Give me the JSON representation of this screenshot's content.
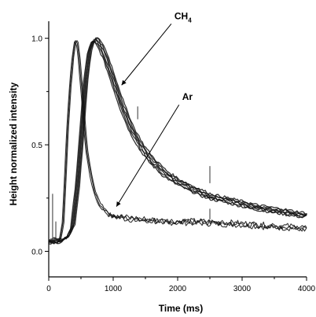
{
  "chart_data": {
    "type": "line",
    "xlabel": "Time (ms)",
    "ylabel": "Height normalized intensity",
    "x_ticks": [
      0,
      1000,
      2000,
      3000,
      4000
    ],
    "y_ticks": [
      0.0,
      0.5,
      1.0
    ],
    "y_tick_labels": [
      "0.0",
      "0.5",
      "1.0"
    ],
    "xlim": [
      0,
      4000
    ],
    "ylim": [
      -0.12,
      1.08
    ],
    "grid": false,
    "annotations": [
      {
        "label": "CH",
        "subscript": "4",
        "text_x": 1950,
        "text_y": 1.09,
        "arrow_to": [
          1130,
          0.78
        ]
      },
      {
        "label": "Ar",
        "text_x": 2070,
        "text_y": 0.71,
        "arrow_to": [
          1050,
          0.21
        ]
      }
    ],
    "series": [
      {
        "x": [
          0,
          180,
          230,
          270,
          300,
          340,
          380,
          420,
          450,
          480,
          520,
          560,
          600,
          660,
          720,
          800,
          900,
          1000,
          1150,
          1300,
          1500,
          1700,
          2000,
          2300,
          2600,
          3000,
          3400,
          3800,
          4000
        ],
        "y": [
          0.05,
          0.05,
          0.14,
          0.38,
          0.58,
          0.77,
          0.91,
          0.99,
          0.98,
          0.9,
          0.76,
          0.6,
          0.47,
          0.36,
          0.28,
          0.22,
          0.19,
          0.17,
          0.16,
          0.155,
          0.15,
          0.145,
          0.14,
          0.14,
          0.135,
          0.13,
          0.12,
          0.115,
          0.11
        ]
      },
      {
        "x": [
          0,
          200,
          300,
          380,
          450,
          520,
          580,
          640,
          700,
          760,
          820,
          880,
          950,
          1050,
          1150,
          1300,
          1450,
          1600,
          1800,
          2000,
          2200,
          2500,
          2800,
          3200,
          3600,
          4000
        ],
        "y": [
          0.05,
          0.05,
          0.07,
          0.12,
          0.3,
          0.56,
          0.8,
          0.94,
          0.99,
          0.99,
          0.96,
          0.92,
          0.86,
          0.77,
          0.68,
          0.57,
          0.49,
          0.43,
          0.37,
          0.33,
          0.3,
          0.26,
          0.24,
          0.21,
          0.19,
          0.17
        ]
      }
    ]
  }
}
